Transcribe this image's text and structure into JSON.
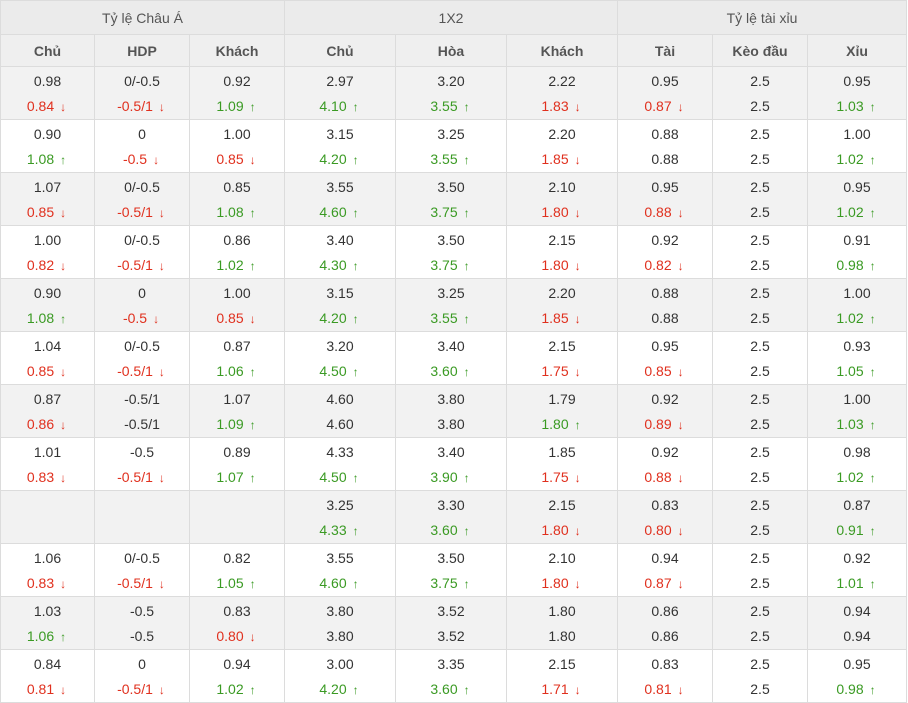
{
  "colors": {
    "up": "#3a9a23",
    "down": "#e0301e",
    "neutral": "#333333",
    "header_bg": "#ebebeb",
    "alt_row_bg": "#f2f2f2"
  },
  "icons": {
    "up": "arrow-up-icon",
    "down": "arrow-down-icon"
  },
  "groups": [
    "Tỷ lệ Châu Á",
    "1X2",
    "Tỷ lệ tài xỉu"
  ],
  "columns": [
    "Chủ",
    "HDP",
    "Khách",
    "Chủ",
    "Hòa",
    "Khách",
    "Tài",
    "Kèo đầu",
    "Xỉu"
  ],
  "rows": [
    [
      [
        "0.98",
        "0.84",
        "d"
      ],
      [
        "0/-0.5",
        "-0.5/1",
        "d"
      ],
      [
        "0.92",
        "1.09",
        "u"
      ],
      [
        "2.97",
        "4.10",
        "u"
      ],
      [
        "3.20",
        "3.55",
        "u"
      ],
      [
        "2.22",
        "1.83",
        "d"
      ],
      [
        "0.95",
        "0.87",
        "d"
      ],
      [
        "2.5",
        "2.5",
        ""
      ],
      [
        "0.95",
        "1.03",
        "u"
      ]
    ],
    [
      [
        "0.90",
        "1.08",
        "u"
      ],
      [
        "0",
        "-0.5",
        "d"
      ],
      [
        "1.00",
        "0.85",
        "d"
      ],
      [
        "3.15",
        "4.20",
        "u"
      ],
      [
        "3.25",
        "3.55",
        "u"
      ],
      [
        "2.20",
        "1.85",
        "d"
      ],
      [
        "0.88",
        "0.88",
        ""
      ],
      [
        "2.5",
        "2.5",
        ""
      ],
      [
        "1.00",
        "1.02",
        "u"
      ]
    ],
    [
      [
        "1.07",
        "0.85",
        "d"
      ],
      [
        "0/-0.5",
        "-0.5/1",
        "d"
      ],
      [
        "0.85",
        "1.08",
        "u"
      ],
      [
        "3.55",
        "4.60",
        "u"
      ],
      [
        "3.50",
        "3.75",
        "u"
      ],
      [
        "2.10",
        "1.80",
        "d"
      ],
      [
        "0.95",
        "0.88",
        "d"
      ],
      [
        "2.5",
        "2.5",
        ""
      ],
      [
        "0.95",
        "1.02",
        "u"
      ]
    ],
    [
      [
        "1.00",
        "0.82",
        "d"
      ],
      [
        "0/-0.5",
        "-0.5/1",
        "d"
      ],
      [
        "0.86",
        "1.02",
        "u"
      ],
      [
        "3.40",
        "4.30",
        "u"
      ],
      [
        "3.50",
        "3.75",
        "u"
      ],
      [
        "2.15",
        "1.80",
        "d"
      ],
      [
        "0.92",
        "0.82",
        "d"
      ],
      [
        "2.5",
        "2.5",
        ""
      ],
      [
        "0.91",
        "0.98",
        "u"
      ]
    ],
    [
      [
        "0.90",
        "1.08",
        "u"
      ],
      [
        "0",
        "-0.5",
        "d"
      ],
      [
        "1.00",
        "0.85",
        "d"
      ],
      [
        "3.15",
        "4.20",
        "u"
      ],
      [
        "3.25",
        "3.55",
        "u"
      ],
      [
        "2.20",
        "1.85",
        "d"
      ],
      [
        "0.88",
        "0.88",
        ""
      ],
      [
        "2.5",
        "2.5",
        ""
      ],
      [
        "1.00",
        "1.02",
        "u"
      ]
    ],
    [
      [
        "1.04",
        "0.85",
        "d"
      ],
      [
        "0/-0.5",
        "-0.5/1",
        "d"
      ],
      [
        "0.87",
        "1.06",
        "u"
      ],
      [
        "3.20",
        "4.50",
        "u"
      ],
      [
        "3.40",
        "3.60",
        "u"
      ],
      [
        "2.15",
        "1.75",
        "d"
      ],
      [
        "0.95",
        "0.85",
        "d"
      ],
      [
        "2.5",
        "2.5",
        ""
      ],
      [
        "0.93",
        "1.05",
        "u"
      ]
    ],
    [
      [
        "0.87",
        "0.86",
        "d"
      ],
      [
        "-0.5/1",
        "-0.5/1",
        ""
      ],
      [
        "1.07",
        "1.09",
        "u"
      ],
      [
        "4.60",
        "4.60",
        ""
      ],
      [
        "3.80",
        "3.80",
        ""
      ],
      [
        "1.79",
        "1.80",
        "u"
      ],
      [
        "0.92",
        "0.89",
        "d"
      ],
      [
        "2.5",
        "2.5",
        ""
      ],
      [
        "1.00",
        "1.03",
        "u"
      ]
    ],
    [
      [
        "1.01",
        "0.83",
        "d"
      ],
      [
        "-0.5",
        "-0.5/1",
        "d"
      ],
      [
        "0.89",
        "1.07",
        "u"
      ],
      [
        "4.33",
        "4.50",
        "u"
      ],
      [
        "3.40",
        "3.90",
        "u"
      ],
      [
        "1.85",
        "1.75",
        "d"
      ],
      [
        "0.92",
        "0.88",
        "d"
      ],
      [
        "2.5",
        "2.5",
        ""
      ],
      [
        "0.98",
        "1.02",
        "u"
      ]
    ],
    [
      [
        "",
        "",
        ""
      ],
      [
        "",
        "",
        ""
      ],
      [
        "",
        "",
        ""
      ],
      [
        "3.25",
        "4.33",
        "u"
      ],
      [
        "3.30",
        "3.60",
        "u"
      ],
      [
        "2.15",
        "1.80",
        "d"
      ],
      [
        "0.83",
        "0.80",
        "d"
      ],
      [
        "2.5",
        "2.5",
        ""
      ],
      [
        "0.87",
        "0.91",
        "u"
      ]
    ],
    [
      [
        "1.06",
        "0.83",
        "d"
      ],
      [
        "0/-0.5",
        "-0.5/1",
        "d"
      ],
      [
        "0.82",
        "1.05",
        "u"
      ],
      [
        "3.55",
        "4.60",
        "u"
      ],
      [
        "3.50",
        "3.75",
        "u"
      ],
      [
        "2.10",
        "1.80",
        "d"
      ],
      [
        "0.94",
        "0.87",
        "d"
      ],
      [
        "2.5",
        "2.5",
        ""
      ],
      [
        "0.92",
        "1.01",
        "u"
      ]
    ],
    [
      [
        "1.03",
        "1.06",
        "u"
      ],
      [
        "-0.5",
        "-0.5",
        ""
      ],
      [
        "0.83",
        "0.80",
        "d"
      ],
      [
        "3.80",
        "3.80",
        ""
      ],
      [
        "3.52",
        "3.52",
        ""
      ],
      [
        "1.80",
        "1.80",
        ""
      ],
      [
        "0.86",
        "0.86",
        ""
      ],
      [
        "2.5",
        "2.5",
        ""
      ],
      [
        "0.94",
        "0.94",
        ""
      ]
    ],
    [
      [
        "0.84",
        "0.81",
        "d"
      ],
      [
        "0",
        "-0.5/1",
        "d"
      ],
      [
        "0.94",
        "1.02",
        "u"
      ],
      [
        "3.00",
        "4.20",
        "u"
      ],
      [
        "3.35",
        "3.60",
        "u"
      ],
      [
        "2.15",
        "1.71",
        "d"
      ],
      [
        "0.83",
        "0.81",
        "d"
      ],
      [
        "2.5",
        "2.5",
        ""
      ],
      [
        "0.95",
        "0.98",
        "u"
      ]
    ]
  ]
}
